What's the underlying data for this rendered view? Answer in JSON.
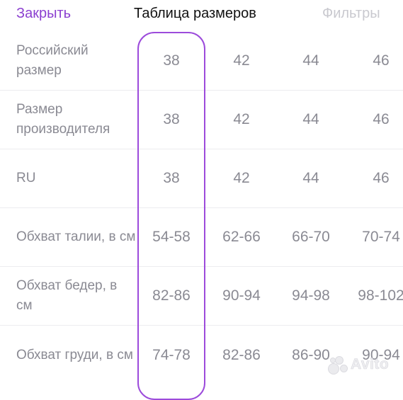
{
  "header": {
    "close_label": "Закрыть",
    "title": "Таблица размеров",
    "filters_label": "Фильтры"
  },
  "colors": {
    "accent": "#8b3fd0",
    "highlight_border": "#9c4bdb",
    "muted_text": "#8a8a93",
    "disabled_text": "#c9c9cf"
  },
  "table": {
    "selected_column": 0,
    "rows": [
      {
        "label": "Российский размер",
        "values": [
          "38",
          "42",
          "44",
          "46"
        ]
      },
      {
        "label": "Размер производителя",
        "values": [
          "38",
          "42",
          "44",
          "46"
        ]
      },
      {
        "label": "RU",
        "values": [
          "38",
          "42",
          "44",
          "46"
        ]
      },
      {
        "label": "Обхват талии, в см",
        "values": [
          "54-58",
          "62-66",
          "66-70",
          "70-74"
        ]
      },
      {
        "label": "Обхват бедер, в см",
        "values": [
          "82-86",
          "90-94",
          "94-98",
          "98-102"
        ]
      },
      {
        "label": "Обхват груди, в см",
        "values": [
          "74-78",
          "82-86",
          "86-90",
          "90-94"
        ]
      }
    ]
  },
  "watermark": {
    "text": "Avito",
    "icon": "avito-logo-icon"
  }
}
